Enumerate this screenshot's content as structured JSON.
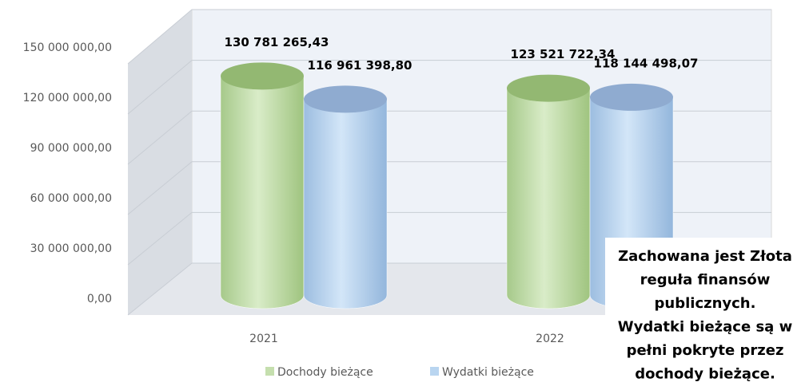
{
  "chart_data": {
    "type": "bar3d",
    "categories": [
      "2021",
      "2022"
    ],
    "series": [
      {
        "name": "Dochody bieżące",
        "color": "#c5dfae",
        "values": [
          130781265.43,
          123521722.34
        ],
        "value_labels": [
          "130 781 265,43",
          "123 521 722,34"
        ]
      },
      {
        "name": "Wydatki bieżące",
        "color": "#b9d5f0",
        "values": [
          116961398.8,
          118144498.07
        ],
        "value_labels": [
          "116 961 398,80",
          "118 144 498,07"
        ]
      }
    ],
    "ylim": [
      0,
      150000000
    ],
    "yticks": [
      {
        "value": 0,
        "label": "0,00"
      },
      {
        "value": 30000000,
        "label": "30 000 000,00"
      },
      {
        "value": 60000000,
        "label": "60 000 000,00"
      },
      {
        "value": 90000000,
        "label": "90 000 000,00"
      },
      {
        "value": 120000000,
        "label": "120 000 000,00"
      },
      {
        "value": 150000000,
        "label": "150 000 000,00"
      }
    ],
    "grid": true,
    "legend": "bottom",
    "annotation": [
      "Zachowana jest Złota",
      "reguła finansów",
      "publicznych.",
      "Wydatki bieżące są w",
      "pełni pokryte przez",
      "dochody bieżące."
    ]
  }
}
